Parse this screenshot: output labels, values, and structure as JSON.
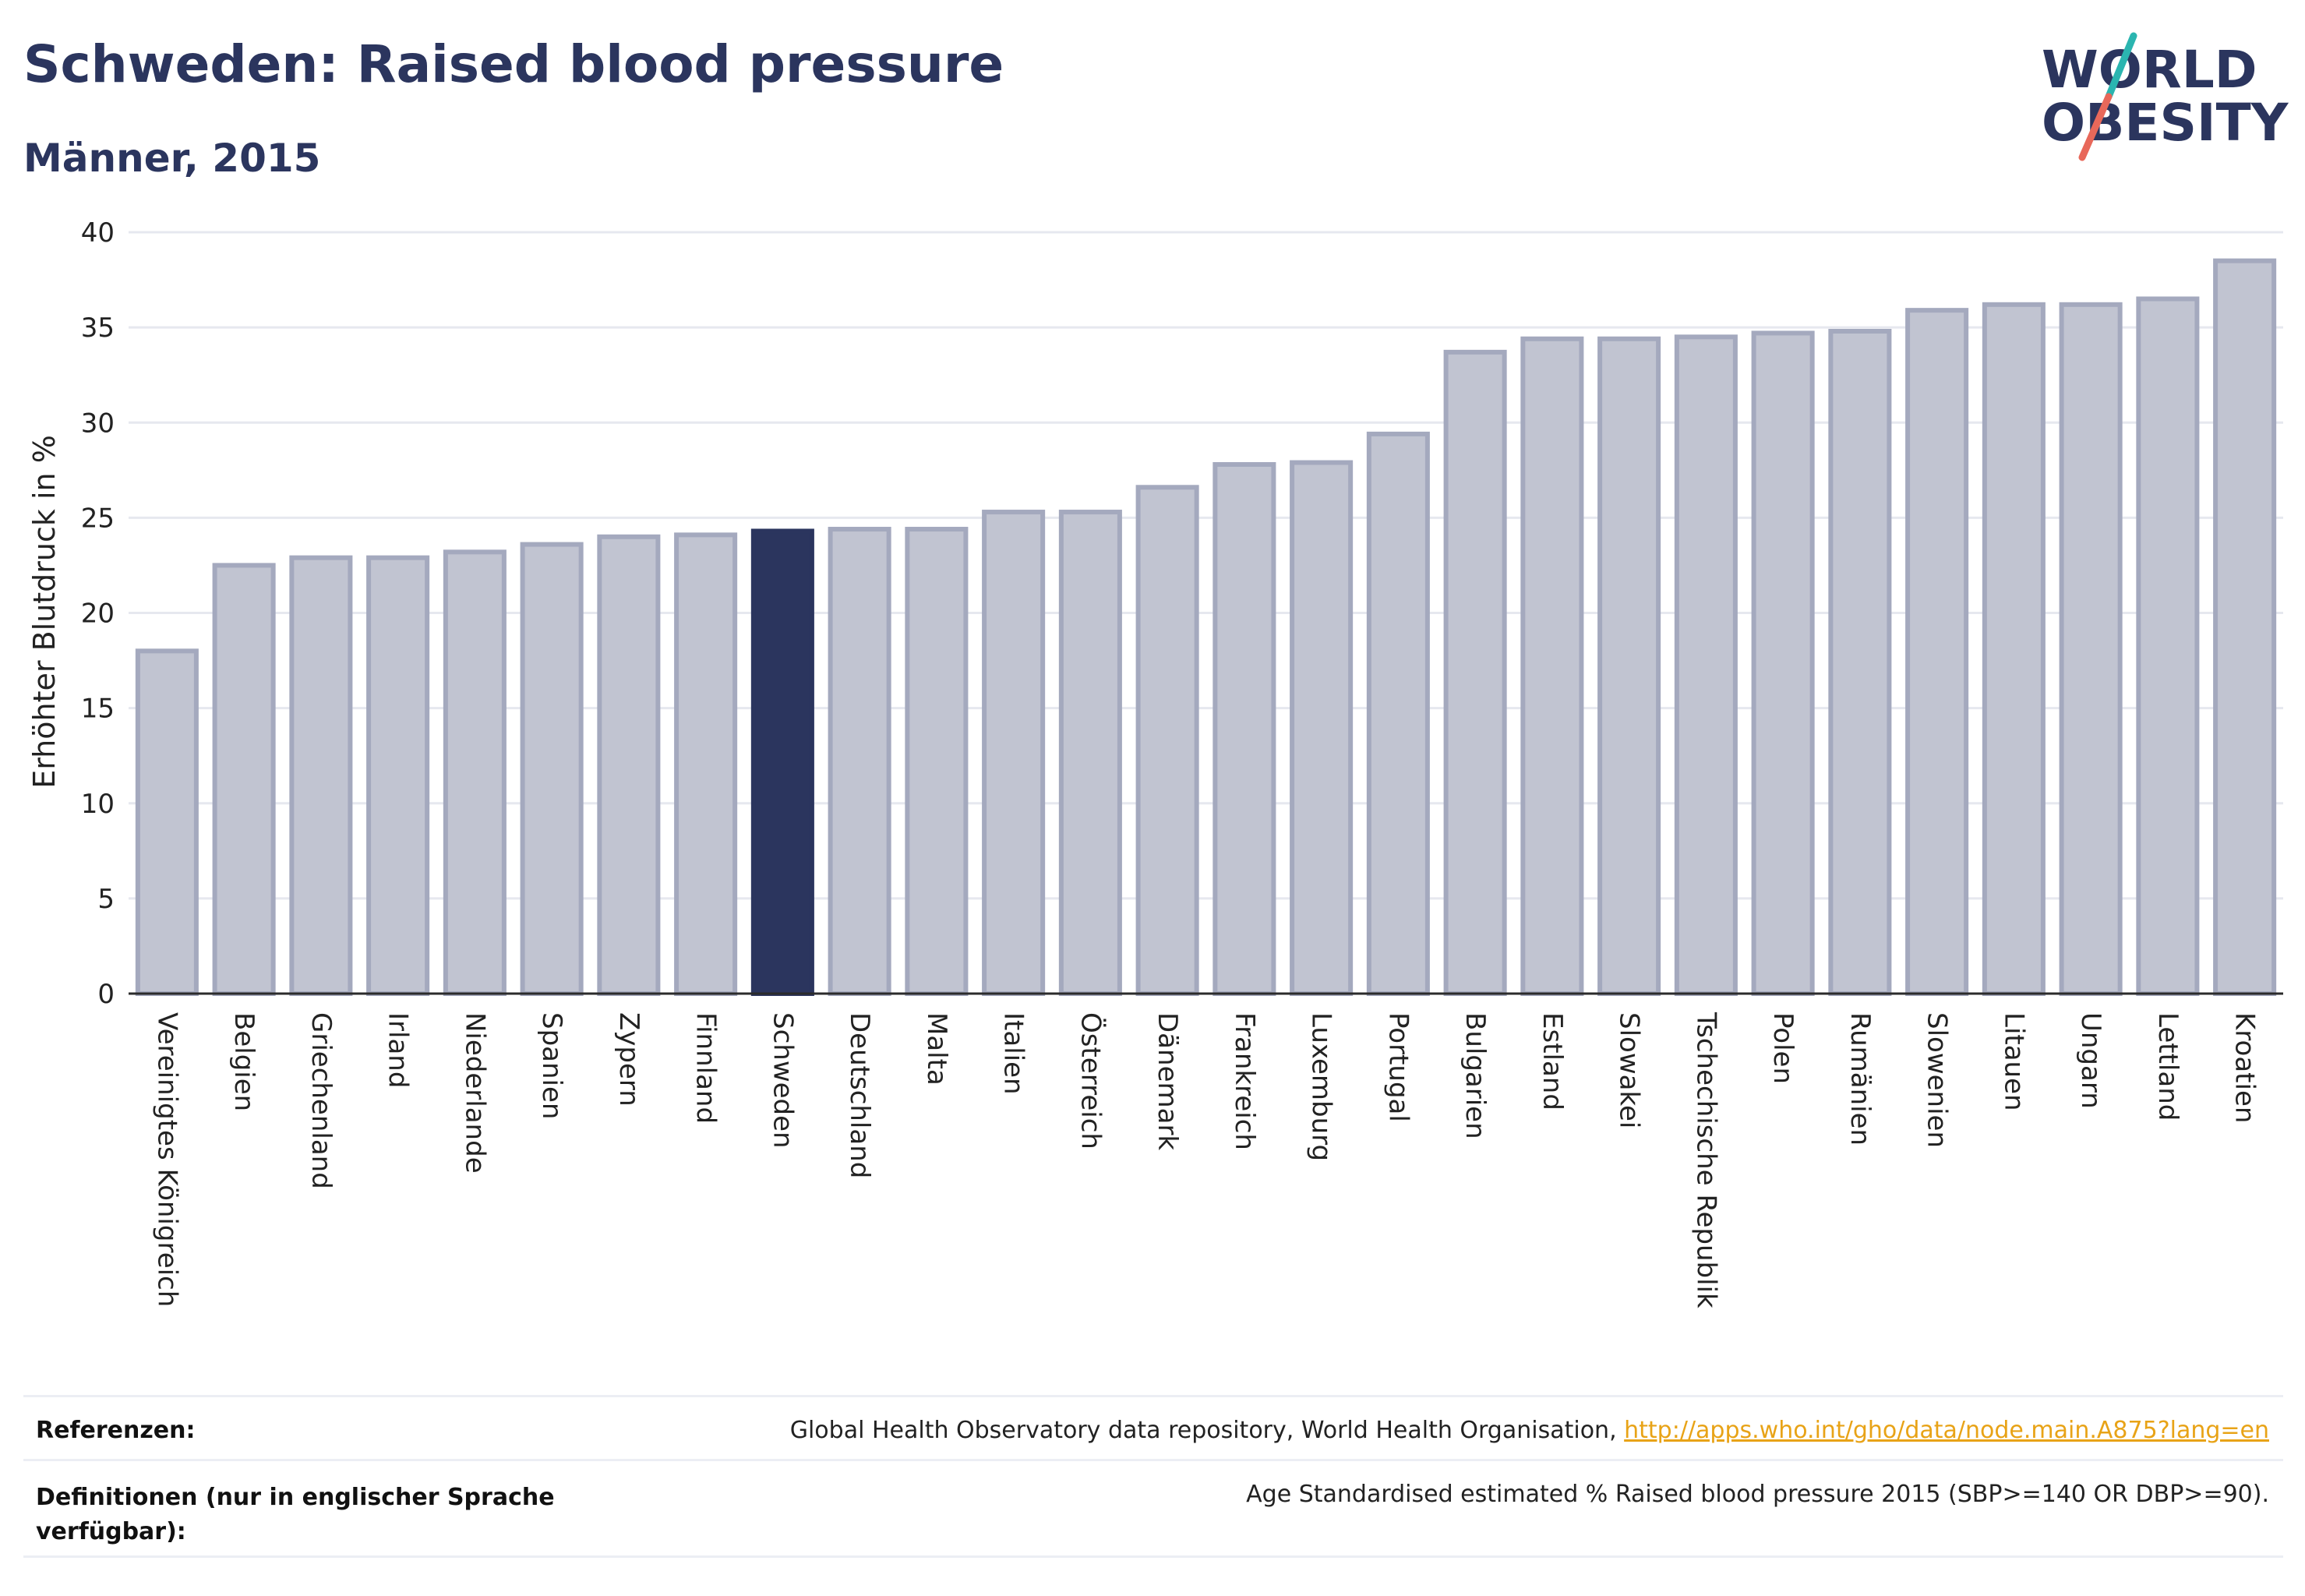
{
  "header": {
    "title": "Schweden: Raised blood pressure",
    "subtitle": "Männer, 2015"
  },
  "logo": {
    "line1": "WORLD",
    "line2": "OBESITY",
    "colors": [
      "#2b355e",
      "#2bb5b0",
      "#e8685a"
    ]
  },
  "chart_data": {
    "type": "bar",
    "ylabel": "Erhöhter Blutdruck in %",
    "xlabel": "",
    "ylim": [
      0,
      40
    ],
    "yticks": [
      0,
      5,
      10,
      15,
      20,
      25,
      30,
      35,
      40
    ],
    "grid": true,
    "highlight": "Schweden",
    "colors": {
      "bar": "#c1c4d1",
      "bar_border": "#a4a9be",
      "highlight": "#2b355e"
    },
    "categories": [
      "Vereinigtes Königreich",
      "Belgien",
      "Griechenland",
      "Irland",
      "Niederlande",
      "Spanien",
      "Zypern",
      "Finnland",
      "Schweden",
      "Deutschland",
      "Malta",
      "Italien",
      "Österreich",
      "Dänemark",
      "Frankreich",
      "Luxemburg",
      "Portugal",
      "Bulgarien",
      "Estland",
      "Slowakei",
      "Tschechische Republik",
      "Polen",
      "Rumänien",
      "Slowenien",
      "Litauen",
      "Ungarn",
      "Lettland",
      "Kroatien"
    ],
    "values": [
      18.0,
      22.5,
      22.9,
      22.9,
      23.2,
      23.6,
      24.0,
      24.1,
      24.3,
      24.4,
      24.4,
      25.3,
      25.3,
      26.6,
      27.8,
      27.9,
      29.4,
      33.7,
      34.4,
      34.4,
      34.5,
      34.7,
      34.8,
      35.9,
      36.2,
      36.2,
      36.5,
      38.5
    ]
  },
  "footer": {
    "references_label": "Referenzen:",
    "references_text": "Global Health Observatory data repository, World Health Organisation, ",
    "references_link": "http://apps.who.int/gho/data/node.main.A875?lang=en",
    "definitions_label": "Definitionen (nur in englischer Sprache verfügbar):",
    "definitions_text": "Age Standardised estimated % Raised blood pressure 2015 (SBP>=140 OR DBP>=90)."
  }
}
